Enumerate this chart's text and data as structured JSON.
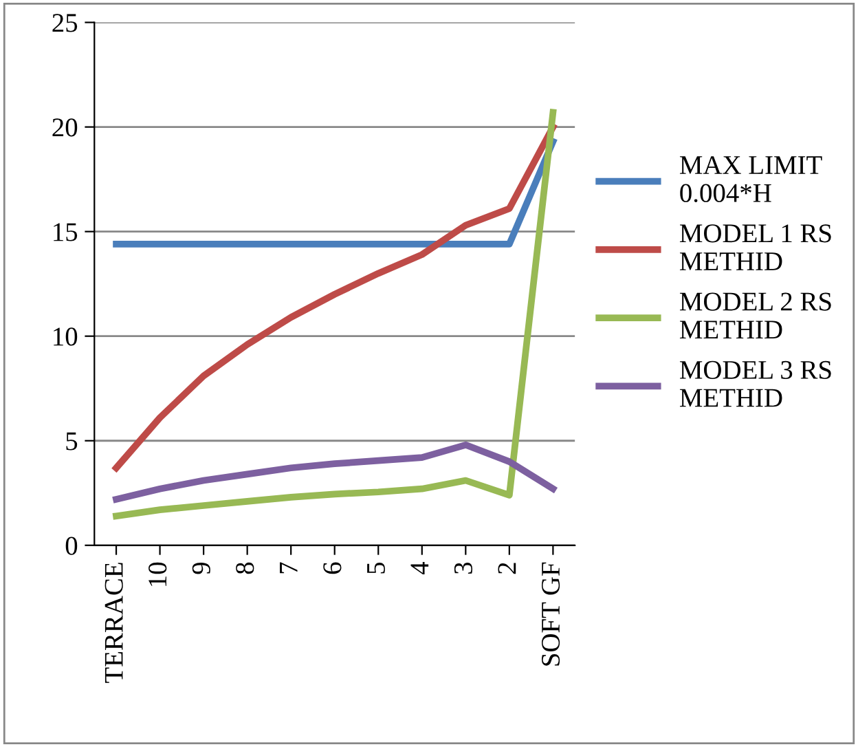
{
  "chart_data": {
    "type": "line",
    "categories": [
      "TERRACE",
      "10",
      "9",
      "8",
      "7",
      "6",
      "5",
      "4",
      "3",
      "2",
      "SOFT GF"
    ],
    "series": [
      {
        "name": "MAX LIMIT\n0.004*H",
        "color": "#4a7ebb",
        "values": [
          14.4,
          14.4,
          14.4,
          14.4,
          14.4,
          14.4,
          14.4,
          14.4,
          14.4,
          14.4,
          19.3
        ]
      },
      {
        "name": "MODEL 1 RS\nMETHID",
        "color": "#be4b48",
        "values": [
          3.7,
          6.1,
          8.1,
          9.6,
          10.9,
          12.0,
          13.0,
          13.9,
          15.3,
          16.1,
          20.0
        ]
      },
      {
        "name": "MODEL 2 RS\nMETHID",
        "color": "#98b954",
        "values": [
          1.4,
          1.7,
          1.9,
          2.1,
          2.3,
          2.45,
          2.55,
          2.7,
          3.1,
          2.4,
          20.7
        ]
      },
      {
        "name": "MODEL 3 RS\nMETHID",
        "color": "#7d60a0",
        "values": [
          2.2,
          2.7,
          3.1,
          3.4,
          3.7,
          3.9,
          4.05,
          4.2,
          4.8,
          4.0,
          2.7
        ]
      }
    ],
    "ylim": [
      0,
      25
    ],
    "yticks": [
      0,
      5,
      10,
      15,
      20,
      25
    ],
    "grid": "y",
    "legend": "right",
    "marker": "none",
    "line_style": "solid"
  }
}
